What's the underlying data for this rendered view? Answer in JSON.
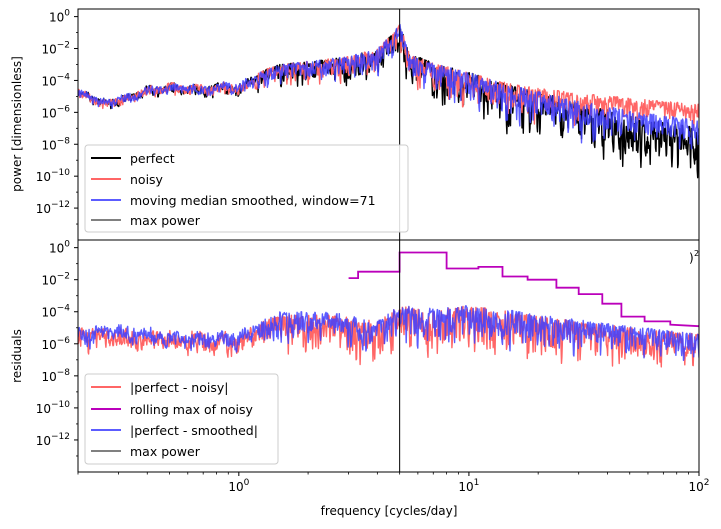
{
  "chart_data": [
    {
      "type": "line",
      "panel": "top",
      "xlabel": "",
      "ylabel": "power [dimensionless]",
      "xscale": "log",
      "yscale": "log",
      "xlim": [
        0.2,
        100
      ],
      "ylim": [
        1e-14,
        3
      ],
      "y_ticks": [
        {
          "value": 1,
          "base": "10",
          "exp": "0"
        },
        {
          "value": 0.01,
          "base": "10",
          "exp": "−2"
        },
        {
          "value": 0.0001,
          "base": "10",
          "exp": "−4"
        },
        {
          "value": 1e-06,
          "base": "10",
          "exp": "−6"
        },
        {
          "value": 1e-08,
          "base": "10",
          "exp": "−8"
        },
        {
          "value": 1e-10,
          "base": "10",
          "exp": "−10"
        },
        {
          "value": 1e-12,
          "base": "10",
          "exp": "−12"
        }
      ],
      "vline": {
        "x": 5.0,
        "color": "#000000"
      },
      "legend_position": "lower-left",
      "series": [
        {
          "name": "perfect",
          "color": "#000000",
          "opacity": 1.0,
          "envelope": [
            [
              0.22,
              -4.6
            ],
            [
              0.25,
              -5.2
            ],
            [
              0.3,
              -5.0
            ],
            [
              0.4,
              -4.4
            ],
            [
              0.5,
              -4.2
            ],
            [
              0.7,
              -4.3
            ],
            [
              0.9,
              -4.1
            ],
            [
              1.0,
              -4.2
            ],
            [
              1.3,
              -3.3
            ],
            [
              1.5,
              -3.0
            ],
            [
              2.0,
              -2.8
            ],
            [
              3.0,
              -2.5
            ],
            [
              4.0,
              -2.0
            ],
            [
              4.7,
              -1.0
            ],
            [
              5.0,
              -0.4
            ],
            [
              5.5,
              -2.3
            ],
            [
              7,
              -2.9
            ],
            [
              10,
              -3.5
            ],
            [
              15,
              -4.3
            ],
            [
              20,
              -4.7
            ],
            [
              30,
              -5.4
            ],
            [
              50,
              -6.2
            ],
            [
              70,
              -6.6
            ],
            [
              100,
              -7.0
            ]
          ],
          "depth": [
            [
              0.2,
              1.0
            ],
            [
              1,
              1.3
            ],
            [
              3,
              2.0
            ],
            [
              10,
              3.0
            ],
            [
              30,
              3.5
            ],
            [
              100,
              3.6
            ]
          ]
        },
        {
          "name": "noisy",
          "color": "#ff6666",
          "opacity": 1.0,
          "envelope": [
            [
              0.22,
              -4.6
            ],
            [
              0.25,
              -5.2
            ],
            [
              0.3,
              -5.0
            ],
            [
              0.4,
              -4.4
            ],
            [
              0.5,
              -4.2
            ],
            [
              0.7,
              -4.3
            ],
            [
              0.9,
              -4.1
            ],
            [
              1.0,
              -4.2
            ],
            [
              1.3,
              -3.3
            ],
            [
              1.5,
              -3.0
            ],
            [
              2.0,
              -2.8
            ],
            [
              3.0,
              -2.5
            ],
            [
              4.0,
              -2.0
            ],
            [
              4.7,
              -1.0
            ],
            [
              5.0,
              -0.4
            ],
            [
              5.5,
              -2.3
            ],
            [
              7,
              -2.9
            ],
            [
              10,
              -3.5
            ],
            [
              15,
              -4.2
            ],
            [
              20,
              -4.5
            ],
            [
              30,
              -4.8
            ],
            [
              50,
              -5.1
            ],
            [
              70,
              -5.3
            ],
            [
              100,
              -5.5
            ]
          ],
          "depth": [
            [
              0.2,
              1.0
            ],
            [
              1,
              1.2
            ],
            [
              3,
              1.8
            ],
            [
              10,
              2.5
            ],
            [
              30,
              2.0
            ],
            [
              100,
              1.5
            ]
          ]
        },
        {
          "name": "moving median smoothed, window=71",
          "color": "#4040ff",
          "opacity": 0.85,
          "envelope": [
            [
              0.22,
              -4.6
            ],
            [
              0.25,
              -5.2
            ],
            [
              0.3,
              -5.0
            ],
            [
              0.4,
              -4.4
            ],
            [
              0.5,
              -4.2
            ],
            [
              0.7,
              -4.3
            ],
            [
              0.9,
              -4.1
            ],
            [
              1.0,
              -4.2
            ],
            [
              1.3,
              -3.3
            ],
            [
              1.5,
              -3.0
            ],
            [
              2.0,
              -2.8
            ],
            [
              3.0,
              -2.5
            ],
            [
              4.0,
              -2.0
            ],
            [
              4.7,
              -1.0
            ],
            [
              5.0,
              -0.4
            ],
            [
              5.5,
              -2.3
            ],
            [
              7,
              -2.9
            ],
            [
              10,
              -3.5
            ],
            [
              15,
              -4.3
            ],
            [
              20,
              -4.7
            ],
            [
              30,
              -5.3
            ],
            [
              50,
              -5.9
            ],
            [
              70,
              -6.2
            ],
            [
              100,
              -6.5
            ]
          ],
          "depth": [
            [
              0.2,
              1.0
            ],
            [
              1,
              1.2
            ],
            [
              3,
              1.8
            ],
            [
              10,
              2.6
            ],
            [
              30,
              2.6
            ],
            [
              100,
              2.2
            ]
          ]
        },
        {
          "name": "max power",
          "color": "#000000",
          "kind": "vline"
        }
      ]
    },
    {
      "type": "line",
      "panel": "bottom",
      "xlabel": "frequency [cycles/day]",
      "ylabel": "residuals",
      "xscale": "log",
      "yscale": "log",
      "xlim": [
        0.2,
        100
      ],
      "ylim": [
        1e-14,
        3
      ],
      "x_ticks": [
        {
          "value": 1,
          "base": "10",
          "exp": "0"
        },
        {
          "value": 10,
          "base": "10",
          "exp": "1"
        },
        {
          "value": 100,
          "base": "10",
          "exp": "2"
        }
      ],
      "y_ticks": [
        {
          "value": 1,
          "base": "10",
          "exp": "0"
        },
        {
          "value": 0.01,
          "base": "10",
          "exp": "−2"
        },
        {
          "value": 0.0001,
          "base": "10",
          "exp": "−4"
        },
        {
          "value": 1e-06,
          "base": "10",
          "exp": "−6"
        },
        {
          "value": 1e-08,
          "base": "10",
          "exp": "−8"
        },
        {
          "value": 1e-10,
          "base": "10",
          "exp": "−10"
        },
        {
          "value": 1e-12,
          "base": "10",
          "exp": "−12"
        }
      ],
      "vline": {
        "x": 5.0,
        "color": "#000000"
      },
      "legend_position": "lower-left",
      "series": [
        {
          "name": "|perfect - noisy|",
          "color": "#ff6666",
          "opacity": 1.0,
          "envelope": [
            [
              0.2,
              -5.0
            ],
            [
              0.3,
              -5.0
            ],
            [
              0.5,
              -5.2
            ],
            [
              1.0,
              -5.2
            ],
            [
              1.5,
              -4.2
            ],
            [
              2.5,
              -4.2
            ],
            [
              4,
              -4.6
            ],
            [
              5,
              -3.6
            ],
            [
              7,
              -3.9
            ],
            [
              10,
              -3.6
            ],
            [
              15,
              -4.0
            ],
            [
              20,
              -4.3
            ],
            [
              30,
              -4.6
            ],
            [
              50,
              -5.0
            ],
            [
              100,
              -5.4
            ]
          ],
          "depth": [
            [
              0.2,
              2.0
            ],
            [
              1,
              2.5
            ],
            [
              3,
              3.0
            ],
            [
              10,
              3.5
            ],
            [
              100,
              2.2
            ]
          ]
        },
        {
          "name": "rolling max of noisy",
          "color": "#bb00bb",
          "kind": "step",
          "points": [
            [
              3.0,
              -1.9
            ],
            [
              3.3,
              -1.9
            ],
            [
              3.3,
              -1.5
            ],
            [
              5.0,
              -1.5
            ],
            [
              5.0,
              -0.3
            ],
            [
              8.0,
              -0.3
            ],
            [
              8.0,
              -1.3
            ],
            [
              11.0,
              -1.3
            ],
            [
              11.0,
              -1.2
            ],
            [
              14.0,
              -1.2
            ],
            [
              14.0,
              -1.8
            ],
            [
              18.0,
              -1.8
            ],
            [
              18.0,
              -2.0
            ],
            [
              24.0,
              -2.0
            ],
            [
              24.0,
              -2.5
            ],
            [
              30.0,
              -2.5
            ],
            [
              30.0,
              -2.9
            ],
            [
              38.0,
              -2.9
            ],
            [
              38.0,
              -3.5
            ],
            [
              46.0,
              -3.5
            ],
            [
              46.0,
              -4.3
            ],
            [
              58.0,
              -4.3
            ],
            [
              58.0,
              -4.6
            ],
            [
              75.0,
              -4.6
            ],
            [
              75.0,
              -4.8
            ],
            [
              100.0,
              -4.9
            ]
          ]
        },
        {
          "name": "|perfect - smoothed|",
          "color": "#4040ff",
          "opacity": 0.85,
          "envelope": [
            [
              0.2,
              -5.0
            ],
            [
              0.3,
              -4.8
            ],
            [
              0.5,
              -5.2
            ],
            [
              1.0,
              -5.2
            ],
            [
              1.5,
              -4.0
            ],
            [
              2.5,
              -4.0
            ],
            [
              4,
              -4.6
            ],
            [
              5,
              -3.6
            ],
            [
              7,
              -3.8
            ],
            [
              10,
              -3.6
            ],
            [
              15,
              -3.9
            ],
            [
              20,
              -4.2
            ],
            [
              30,
              -4.5
            ],
            [
              50,
              -4.9
            ],
            [
              100,
              -5.4
            ]
          ],
          "depth": [
            [
              0.2,
              1.8
            ],
            [
              1,
              2.0
            ],
            [
              3,
              2.2
            ],
            [
              10,
              2.8
            ],
            [
              100,
              2.0
            ]
          ]
        },
        {
          "name": "max power",
          "color": "#000000",
          "kind": "vline"
        }
      ]
    }
  ]
}
